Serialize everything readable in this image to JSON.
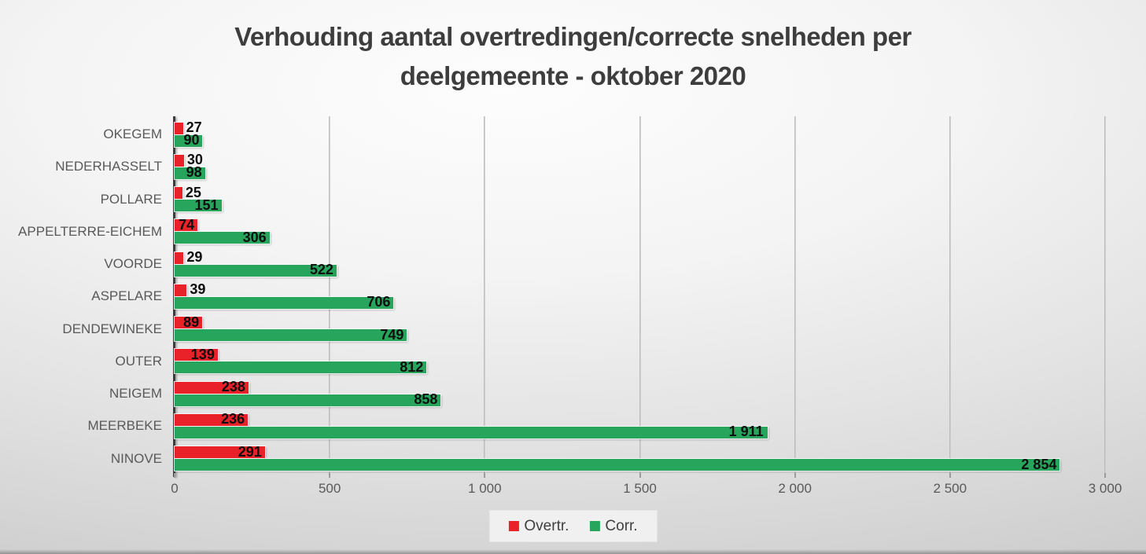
{
  "page": {
    "title_lines": [
      "Verhouding aantal overtredingen/correcte snelheden per",
      "deelgemeente - oktober 2020"
    ]
  },
  "chart_data": {
    "type": "bar",
    "orientation": "horizontal",
    "title": "Verhouding aantal overtredingen/correcte snelheden per deelgemeente - oktober 2020",
    "categories": [
      "OKEGEM",
      "NEDERHASSELT",
      "POLLARE",
      "APPELTERRE-EICHEM",
      "VOORDE",
      "ASPELARE",
      "DENDEWINEKE",
      "OUTER",
      "NEIGEM",
      "MEERBEKE",
      "NINOVE"
    ],
    "series": [
      {
        "name": "Overtr.",
        "key": "overtr",
        "color": "#e92128",
        "values": [
          27,
          30,
          25,
          74,
          29,
          39,
          89,
          139,
          238,
          236,
          291
        ]
      },
      {
        "name": "Corr.",
        "key": "corr",
        "color": "#28a55c",
        "values": [
          90,
          98,
          151,
          306,
          522,
          706,
          749,
          812,
          858,
          1911,
          2854
        ]
      }
    ],
    "xlim": [
      0,
      3000
    ],
    "x_ticks": [
      {
        "value": 0,
        "label": "0"
      },
      {
        "value": 500,
        "label": "500"
      },
      {
        "value": 1000,
        "label": "1 000"
      },
      {
        "value": 1500,
        "label": "1 500"
      },
      {
        "value": 2000,
        "label": "2 000"
      },
      {
        "value": 2500,
        "label": "2 500"
      },
      {
        "value": 3000,
        "label": "3 000"
      }
    ],
    "grid": true,
    "legend_position": "bottom",
    "value_labels": "end-of-bar, space as thousands separator"
  },
  "legend": {
    "items": [
      {
        "label": "Overtr.",
        "color": "#e92128"
      },
      {
        "label": "Corr.",
        "color": "#28a55c"
      }
    ]
  },
  "colors": {
    "background_center": "#fdfdfd",
    "background_edge": "#cdcdcd",
    "axis": "#3c3c3c",
    "gridline": "#ababab",
    "title_text": "#3d3d3d",
    "axis_text": "#595959",
    "value_text": "#0e0e0e",
    "legend_background": "#f0f0f0"
  }
}
